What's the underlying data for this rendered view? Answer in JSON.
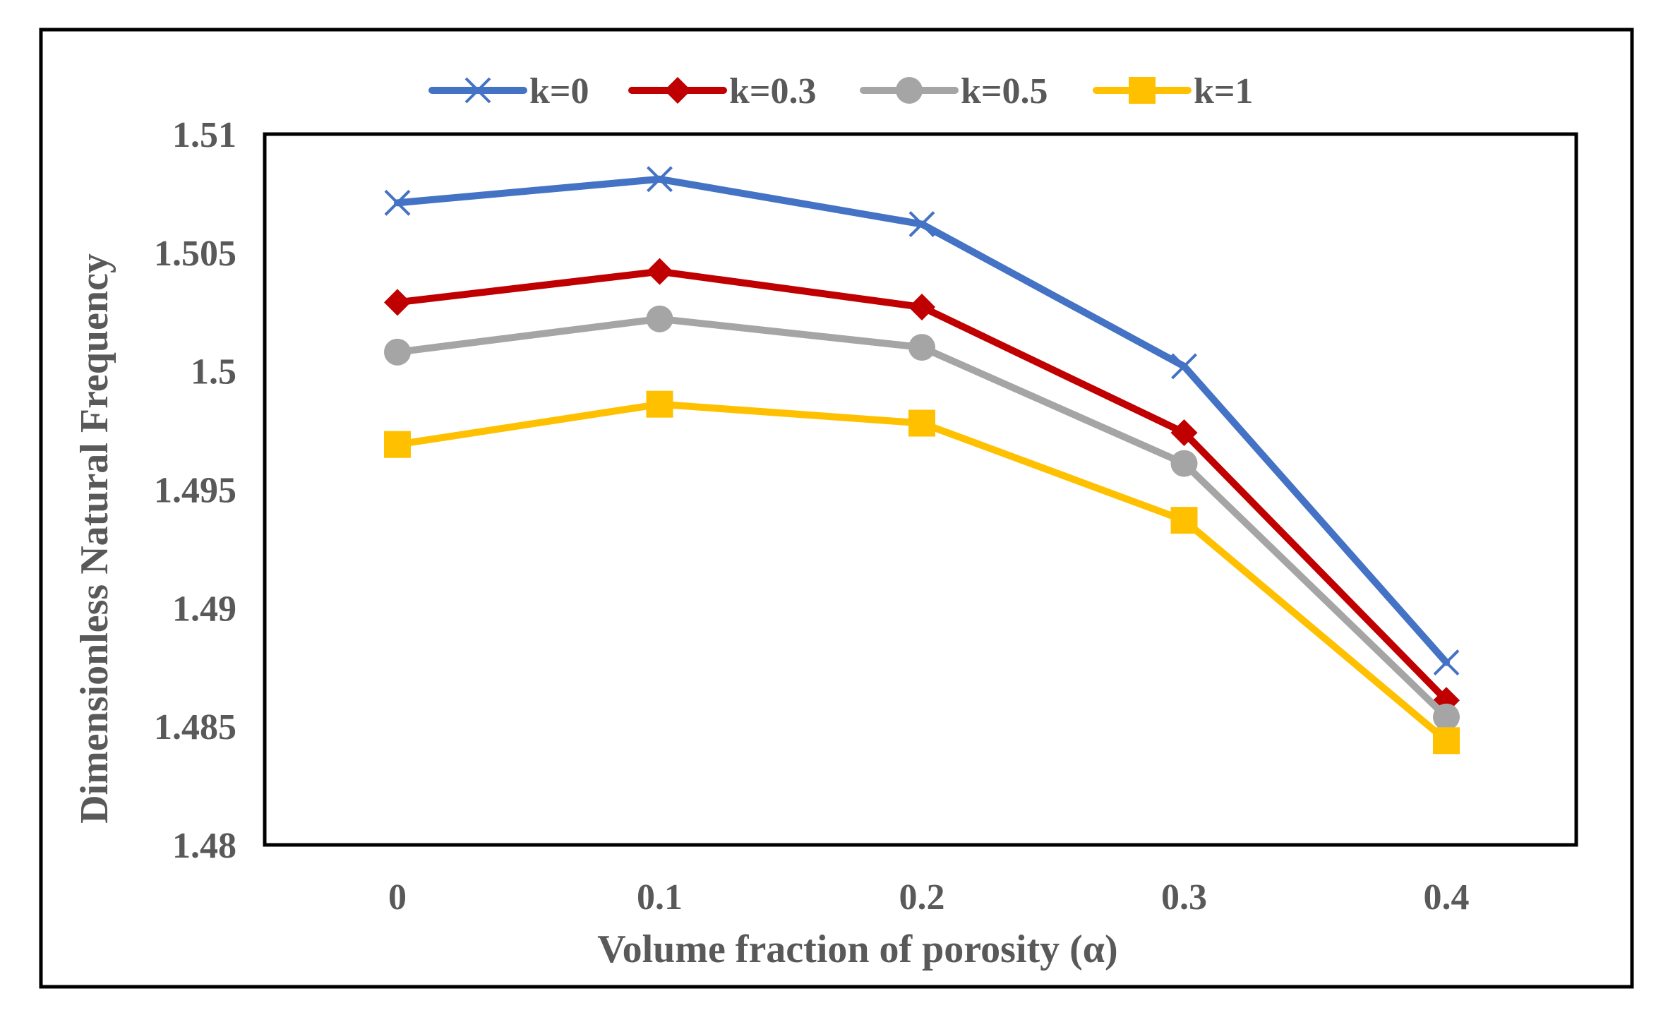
{
  "chart_data": {
    "type": "line",
    "title": "",
    "xlabel": "Volume fraction of porosity (α)",
    "ylabel": "Dimensionless Natural Frequency",
    "x": [
      0,
      0.1,
      0.2,
      0.3,
      0.4
    ],
    "x_tick_labels": [
      "0",
      "0.1",
      "0.2",
      "0.3",
      "0.4"
    ],
    "ylim": [
      1.48,
      1.51
    ],
    "y_ticks": [
      1.48,
      1.485,
      1.49,
      1.495,
      1.5,
      1.505,
      1.51
    ],
    "y_tick_labels": [
      "1.48",
      "1.485",
      "1.49",
      "1.495",
      "1.5",
      "1.505",
      "1.51"
    ],
    "grid": false,
    "legend_position": "top-center",
    "series": [
      {
        "name": "k=0",
        "marker": "x",
        "color": "#4472C4",
        "values": [
          1.5071,
          1.5081,
          1.5062,
          1.5002,
          1.4877
        ]
      },
      {
        "name": "k=0.3",
        "marker": "diamond",
        "color": "#C00000",
        "values": [
          1.5029,
          1.5042,
          1.5027,
          1.4974,
          1.4861
        ]
      },
      {
        "name": "k=0.5",
        "marker": "circle",
        "color": "#A5A5A5",
        "values": [
          1.5008,
          1.5022,
          1.501,
          1.4961,
          1.4854
        ]
      },
      {
        "name": "k=1",
        "marker": "square",
        "color": "#FFC000",
        "values": [
          1.4969,
          1.4986,
          1.4978,
          1.4937,
          1.4844
        ]
      }
    ]
  }
}
